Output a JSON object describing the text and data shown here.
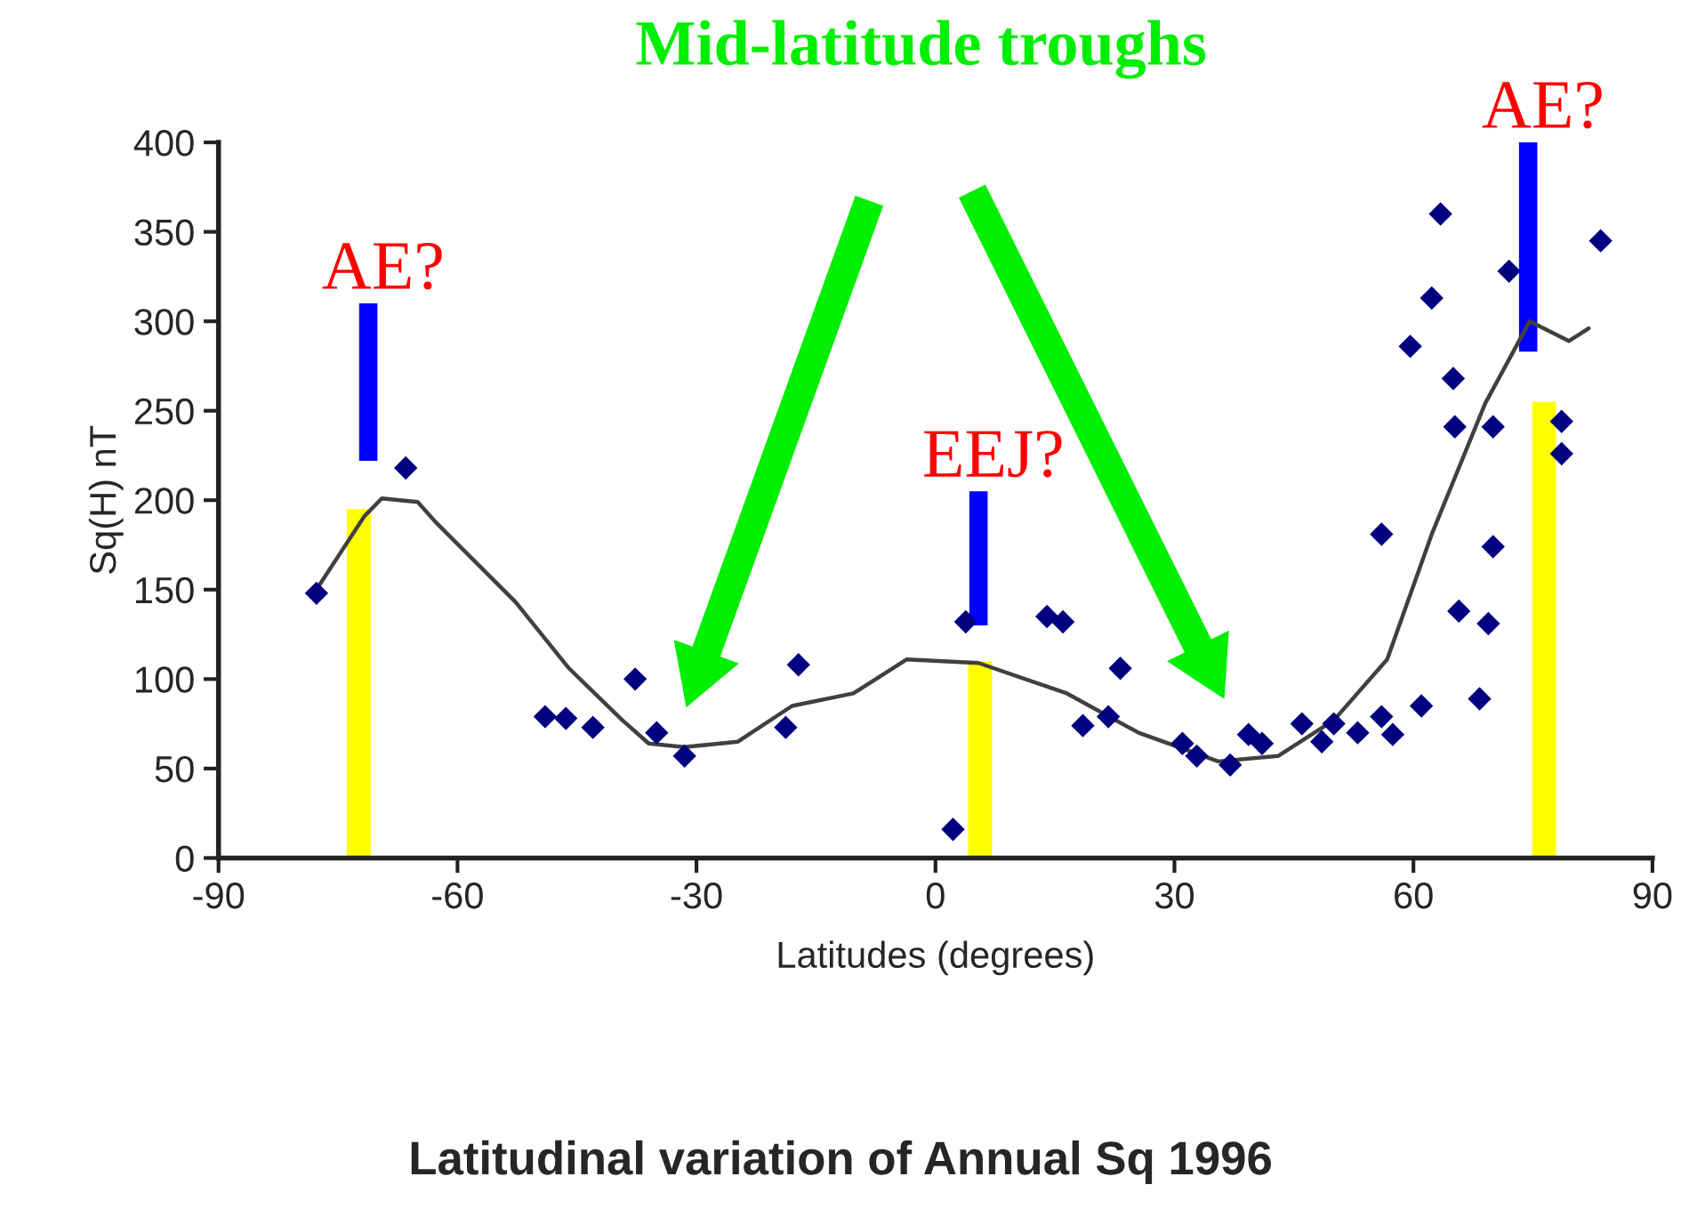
{
  "chart_data": {
    "type": "scatter",
    "title": "Latitudinal variation of Annual Sq 1996",
    "xlabel": "Latitudes (degrees)",
    "ylabel": "Sq(H) nT",
    "xlim": [
      -90,
      90
    ],
    "xticks": [
      -90,
      -60,
      -30,
      0,
      30,
      60,
      90
    ],
    "ylim": [
      0,
      400
    ],
    "yticks": [
      0,
      50,
      100,
      150,
      200,
      250,
      300,
      350,
      400
    ],
    "grid": false,
    "legend": false,
    "series": [
      {
        "type": "bar",
        "color": "#ffff00",
        "x": [
          -72.4,
          5.6,
          76.4
        ],
        "values": [
          195,
          110,
          255
        ]
      },
      {
        "type": "bar",
        "color": "#0000ff",
        "x": [
          -71.2,
          5.4,
          74.4
        ],
        "base": [
          222,
          130,
          283
        ],
        "values": [
          88,
          75,
          117
        ]
      },
      {
        "color": "#000080",
        "marker": "diamond",
        "x": [
          -77.7,
          -66.5,
          -49,
          -46.4,
          -43,
          -37.7,
          -35,
          -31.5,
          -18.8,
          -17.2,
          2.2,
          3.8,
          14,
          16,
          23.2,
          18.5,
          21.7,
          31,
          32.8,
          37,
          39.3,
          41,
          46,
          48.5,
          50,
          53,
          56,
          57.4,
          61,
          56,
          59.6,
          62.3,
          63.4,
          65,
          65.2,
          65.7,
          70,
          70,
          69.4,
          68.3,
          72,
          78.6,
          78.6,
          83.5
        ],
        "values": [
          148,
          218,
          79,
          78,
          73,
          100,
          70,
          57,
          73,
          108,
          16,
          132,
          135,
          132,
          106,
          74,
          79,
          64,
          57,
          52,
          69,
          64,
          75,
          65,
          75,
          70,
          79,
          69,
          85,
          181,
          286,
          313,
          360,
          268,
          241,
          138,
          241,
          174,
          131,
          89,
          328,
          244,
          226,
          345
        ]
      },
      {
        "type": "line",
        "color": "#404040",
        "marker": "none",
        "x": [
          -78,
          -71.7,
          -69.5,
          -65,
          -62.8,
          -52.7,
          -46,
          -39.3,
          -36,
          -31.5,
          -24.8,
          -18,
          -10.3,
          -3.6,
          5.4,
          16.5,
          25.5,
          35.5,
          43,
          50,
          56.7,
          62.3,
          69,
          74.6,
          79.5,
          82
        ],
        "values": [
          148,
          191,
          201,
          199,
          188,
          143,
          106,
          77,
          64,
          62,
          65,
          85,
          92,
          111,
          109,
          92,
          70,
          54,
          57,
          77,
          111,
          181,
          254,
          300,
          289,
          296
        ]
      }
    ],
    "annotations": [
      "Mid-latitude troughs",
      {
        "text": "AE?",
        "x": -71.2,
        "y": 310
      },
      {
        "text": "EEJ?",
        "x": 5.4,
        "y": 205
      },
      {
        "text": "AE?",
        "x": 74.4,
        "y": 400
      }
    ]
  }
}
